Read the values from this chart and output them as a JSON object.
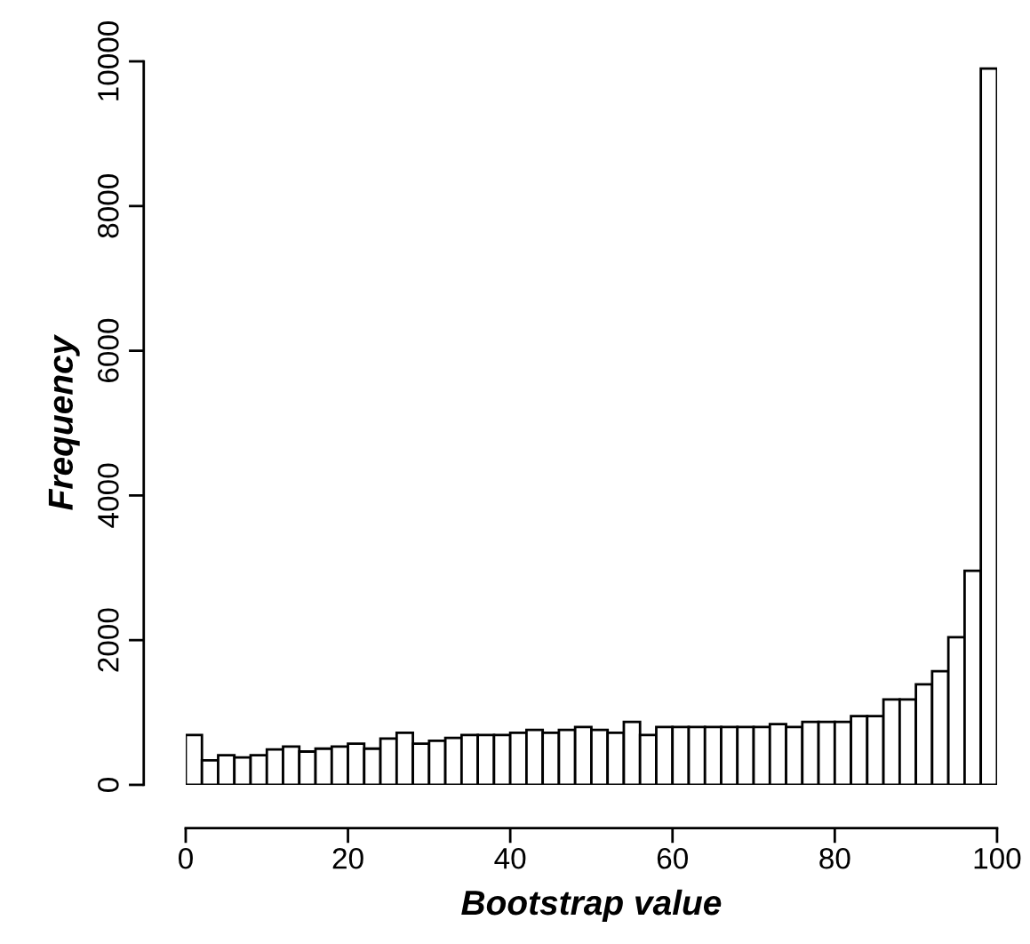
{
  "chart_data": {
    "type": "histogram",
    "xlabel": "Bootstrap value",
    "ylabel": "Frequency",
    "bins": [
      0,
      2,
      4,
      6,
      8,
      10,
      12,
      14,
      16,
      18,
      20,
      22,
      24,
      26,
      28,
      30,
      32,
      34,
      36,
      38,
      40,
      42,
      44,
      46,
      48,
      50,
      52,
      54,
      56,
      58,
      60,
      62,
      64,
      66,
      68,
      70,
      72,
      74,
      76,
      78,
      80,
      82,
      84,
      86,
      88,
      90,
      92,
      94,
      96,
      98,
      100
    ],
    "values": [
      690,
      340,
      410,
      380,
      410,
      490,
      530,
      460,
      500,
      530,
      570,
      500,
      640,
      720,
      570,
      610,
      650,
      690,
      690,
      690,
      720,
      760,
      720,
      760,
      800,
      760,
      720,
      870,
      690,
      800,
      800,
      800,
      800,
      800,
      800,
      800,
      840,
      800,
      870,
      870,
      870,
      950,
      950,
      1180,
      1180,
      1390,
      1570,
      2040,
      2960,
      9900
    ],
    "color": "#ffffff",
    "xlim": [
      0,
      100
    ],
    "ylim": [
      0,
      10000
    ],
    "xticks": [
      0,
      20,
      40,
      60,
      80,
      100
    ],
    "yticks": [
      0,
      2000,
      4000,
      6000,
      8000,
      10000
    ],
    "grid": false
  }
}
